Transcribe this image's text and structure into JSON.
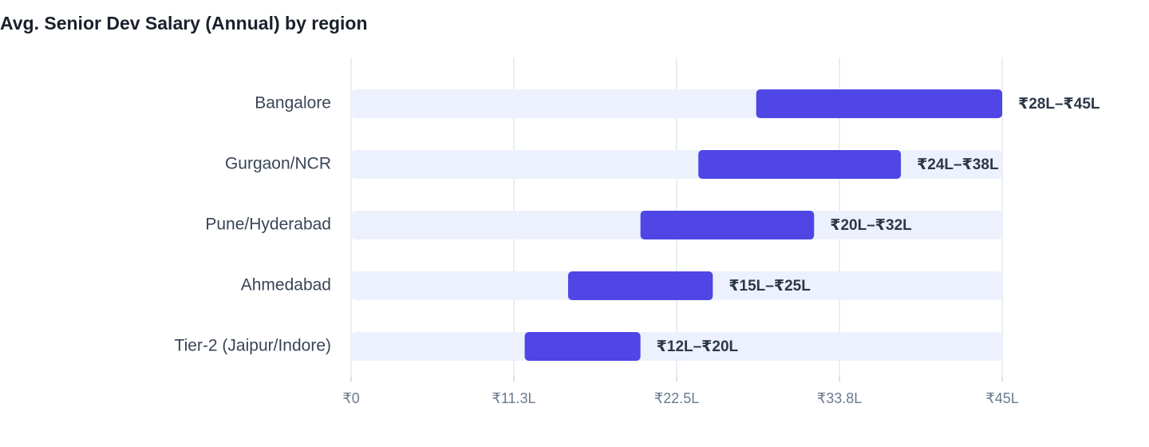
{
  "chart_data": {
    "type": "range-bar",
    "title": "Avg. Senior Dev Salary (Annual) by region",
    "categories": [
      "Bangalore",
      "Gurgaon/NCR",
      "Pune/Hyderabad",
      "Ahmedabad",
      "Tier-2 (Jaipur/Indore)"
    ],
    "low": [
      28,
      24,
      20,
      15,
      12
    ],
    "high": [
      45,
      38,
      32,
      25,
      20
    ],
    "value_labels": [
      "₹28L–₹45L",
      "₹24L–₹38L",
      "₹20L–₹32L",
      "₹15L–₹25L",
      "₹12L–₹20L"
    ],
    "color": "#4f46e5",
    "track_color": "#edf1fd",
    "xlim": [
      0,
      45
    ],
    "xticks": [
      {
        "value": 0,
        "label": "₹0"
      },
      {
        "value": 11.25,
        "label": "₹11.3L"
      },
      {
        "value": 22.5,
        "label": "₹22.5L"
      },
      {
        "value": 33.75,
        "label": "₹33.8L"
      },
      {
        "value": 45,
        "label": "₹45L"
      }
    ],
    "grid": true
  }
}
